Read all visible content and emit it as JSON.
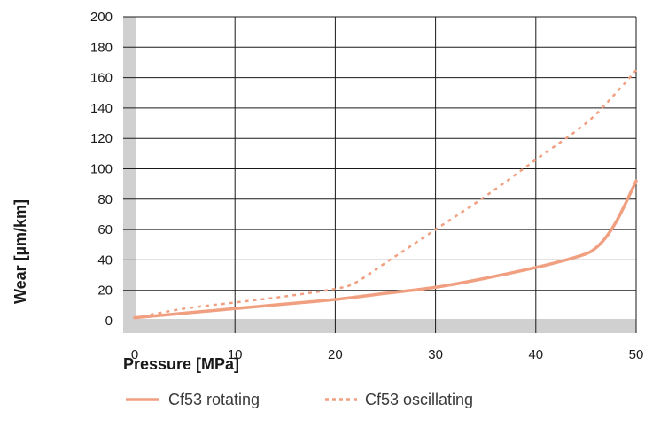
{
  "chart_data": {
    "type": "line",
    "xlabel": "Pressure [MPa]",
    "ylabel": "Wear [µm/km]",
    "xlim": [
      0,
      50
    ],
    "ylim": [
      0,
      200
    ],
    "x_ticks": [
      0,
      10,
      20,
      30,
      40,
      50
    ],
    "y_ticks": [
      0,
      20,
      40,
      60,
      80,
      100,
      120,
      140,
      160,
      180,
      200
    ],
    "grid": true,
    "legend_position": "bottom",
    "series": [
      {
        "name": "Cf53 rotating",
        "style": "solid",
        "color": "#f0a080",
        "x": [
          0,
          5,
          10,
          15,
          20,
          25,
          30,
          35,
          40,
          43,
          45,
          46,
          47,
          48,
          49,
          50
        ],
        "y": [
          2,
          5,
          8,
          11,
          14,
          18,
          22,
          28,
          35,
          40,
          44,
          48,
          55,
          65,
          78,
          92
        ]
      },
      {
        "name": "Cf53 oscillating",
        "style": "dotted",
        "color": "#f0a080",
        "x": [
          0,
          5,
          10,
          15,
          20,
          22,
          25,
          30,
          35,
          40,
          45,
          48,
          50
        ],
        "y": [
          2,
          8,
          12,
          16,
          21,
          25,
          38,
          60,
          82,
          106,
          130,
          150,
          165
        ]
      }
    ]
  }
}
